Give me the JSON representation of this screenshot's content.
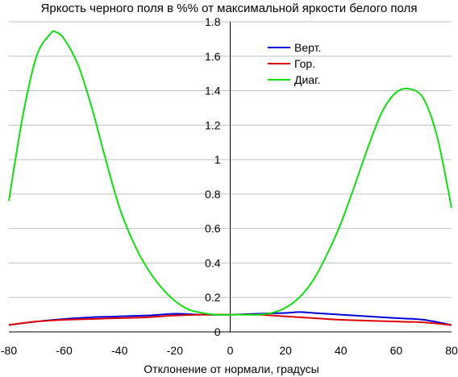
{
  "chart_data": {
    "type": "line",
    "title": "Яркость черного поля в %% от максимальной яркости белого поля",
    "xlabel": "Отклонение от нормали, градусы",
    "ylabel": "",
    "xlim": [
      -80,
      80
    ],
    "ylim": [
      0,
      1.8
    ],
    "x_ticks": [
      "-80",
      "-60",
      "-40",
      "-20",
      "0",
      "20",
      "40",
      "60",
      "80"
    ],
    "y_ticks": [
      "0",
      "0.2",
      "0.4",
      "0.6",
      "0.8",
      "1",
      "1.2",
      "1.4",
      "1.6",
      "1.8"
    ],
    "grid": true,
    "legend_position": "top-right",
    "series": [
      {
        "name": "Верт.",
        "color": "#0000dd",
        "x": [
          -80,
          -70,
          -60,
          -50,
          -40,
          -30,
          -20,
          -10,
          0,
          10,
          20,
          25,
          30,
          40,
          50,
          60,
          70,
          80
        ],
        "y": [
          0.04,
          0.06,
          0.075,
          0.085,
          0.09,
          0.095,
          0.105,
          0.1,
          0.1,
          0.105,
          0.11,
          0.115,
          0.11,
          0.1,
          0.09,
          0.08,
          0.07,
          0.04
        ]
      },
      {
        "name": "Гор.",
        "color": "#dd0000",
        "x": [
          -80,
          -70,
          -60,
          -50,
          -40,
          -30,
          -20,
          -10,
          0,
          10,
          20,
          30,
          40,
          50,
          60,
          70,
          80
        ],
        "y": [
          0.04,
          0.06,
          0.07,
          0.075,
          0.08,
          0.085,
          0.095,
          0.1,
          0.1,
          0.1,
          0.09,
          0.08,
          0.07,
          0.065,
          0.06,
          0.055,
          0.04
        ]
      },
      {
        "name": "Диаг.",
        "color": "#11dd11",
        "x": [
          -80,
          -75,
          -70,
          -65,
          -63,
          -60,
          -55,
          -50,
          -45,
          -40,
          -35,
          -30,
          -25,
          -20,
          -15,
          -10,
          -5,
          0,
          5,
          10,
          15,
          20,
          25,
          30,
          35,
          40,
          45,
          50,
          55,
          60,
          65,
          70,
          75,
          80
        ],
        "y": [
          0.76,
          1.25,
          1.6,
          1.73,
          1.74,
          1.7,
          1.55,
          1.3,
          1.0,
          0.72,
          0.52,
          0.37,
          0.26,
          0.18,
          0.13,
          0.11,
          0.1,
          0.1,
          0.1,
          0.1,
          0.11,
          0.14,
          0.2,
          0.3,
          0.45,
          0.63,
          0.85,
          1.08,
          1.28,
          1.39,
          1.41,
          1.35,
          1.12,
          0.72
        ]
      }
    ]
  }
}
